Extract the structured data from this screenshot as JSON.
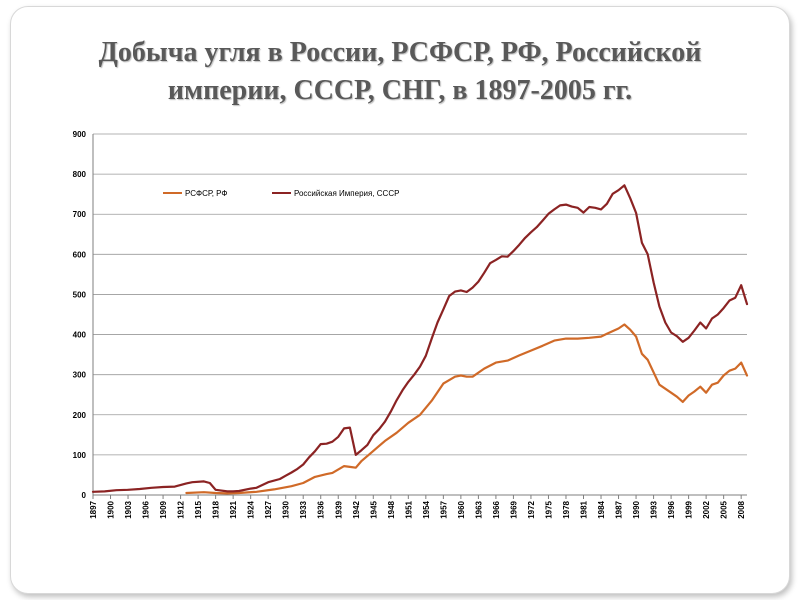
{
  "title": {
    "line1": "Добыча угля в России, РСФСР, РФ, Российской",
    "line2": "империи, СССР, СНГ, в  1897-2005 гг."
  },
  "chart_data": {
    "type": "line",
    "ylim": [
      0,
      900
    ],
    "yticks": [
      0,
      100,
      200,
      300,
      400,
      500,
      600,
      700,
      800,
      900
    ],
    "xlim": [
      1897,
      2009
    ],
    "xticks": [
      1897,
      1900,
      1903,
      1906,
      1909,
      1912,
      1915,
      1918,
      1921,
      1924,
      1927,
      1930,
      1933,
      1936,
      1939,
      1942,
      1945,
      1948,
      1951,
      1954,
      1957,
      1960,
      1963,
      1966,
      1969,
      1972,
      1975,
      1978,
      1981,
      1984,
      1987,
      1990,
      1993,
      1996,
      1999,
      2002,
      2005,
      2008
    ],
    "grid": true,
    "legend_position": "top-left",
    "series": [
      {
        "name": "РСФСР, РФ",
        "color": "#d06a28",
        "points": [
          [
            1913,
            5
          ],
          [
            1916,
            7
          ],
          [
            1918,
            5
          ],
          [
            1920,
            4
          ],
          [
            1922,
            5
          ],
          [
            1925,
            8
          ],
          [
            1928,
            14
          ],
          [
            1931,
            22
          ],
          [
            1933,
            30
          ],
          [
            1935,
            45
          ],
          [
            1937,
            52
          ],
          [
            1938,
            55
          ],
          [
            1940,
            72
          ],
          [
            1941,
            70
          ],
          [
            1942,
            68
          ],
          [
            1943,
            85
          ],
          [
            1945,
            110
          ],
          [
            1947,
            135
          ],
          [
            1949,
            155
          ],
          [
            1951,
            180
          ],
          [
            1953,
            200
          ],
          [
            1955,
            235
          ],
          [
            1957,
            278
          ],
          [
            1959,
            295
          ],
          [
            1960,
            298
          ],
          [
            1961,
            295
          ],
          [
            1962,
            295
          ],
          [
            1964,
            315
          ],
          [
            1966,
            330
          ],
          [
            1968,
            335
          ],
          [
            1970,
            348
          ],
          [
            1972,
            360
          ],
          [
            1974,
            372
          ],
          [
            1976,
            385
          ],
          [
            1978,
            390
          ],
          [
            1980,
            390
          ],
          [
            1982,
            392
          ],
          [
            1984,
            395
          ],
          [
            1985,
            402
          ],
          [
            1987,
            415
          ],
          [
            1988,
            425
          ],
          [
            1989,
            412
          ],
          [
            1990,
            395
          ],
          [
            1991,
            352
          ],
          [
            1992,
            337
          ],
          [
            1994,
            275
          ],
          [
            1996,
            255
          ],
          [
            1997,
            245
          ],
          [
            1998,
            232
          ],
          [
            1999,
            248
          ],
          [
            2000,
            258
          ],
          [
            2001,
            270
          ],
          [
            2002,
            255
          ],
          [
            2003,
            275
          ],
          [
            2004,
            280
          ],
          [
            2005,
            298
          ],
          [
            2006,
            310
          ],
          [
            2007,
            315
          ],
          [
            2008,
            330
          ],
          [
            2009,
            298
          ]
        ]
      },
      {
        "name": "Российская Империя, СССР",
        "color": "#8b2323",
        "points": [
          [
            1897,
            8
          ],
          [
            1899,
            9
          ],
          [
            1901,
            12
          ],
          [
            1903,
            13
          ],
          [
            1905,
            15
          ],
          [
            1907,
            18
          ],
          [
            1909,
            20
          ],
          [
            1911,
            21
          ],
          [
            1913,
            29
          ],
          [
            1914,
            32
          ],
          [
            1916,
            34
          ],
          [
            1917,
            30
          ],
          [
            1918,
            13
          ],
          [
            1920,
            9
          ],
          [
            1921,
            9
          ],
          [
            1922,
            10
          ],
          [
            1924,
            16
          ],
          [
            1925,
            18
          ],
          [
            1927,
            32
          ],
          [
            1929,
            40
          ],
          [
            1930,
            48
          ],
          [
            1931,
            56
          ],
          [
            1932,
            65
          ],
          [
            1933,
            76
          ],
          [
            1934,
            94
          ],
          [
            1935,
            109
          ],
          [
            1936,
            127
          ],
          [
            1937,
            128
          ],
          [
            1938,
            133
          ],
          [
            1939,
            145
          ],
          [
            1940,
            166
          ],
          [
            1941,
            168
          ],
          [
            1942,
            100
          ],
          [
            1943,
            112
          ],
          [
            1944,
            125
          ],
          [
            1945,
            149
          ],
          [
            1946,
            164
          ],
          [
            1947,
            183
          ],
          [
            1948,
            208
          ],
          [
            1949,
            236
          ],
          [
            1950,
            261
          ],
          [
            1951,
            282
          ],
          [
            1952,
            300
          ],
          [
            1953,
            320
          ],
          [
            1954,
            347
          ],
          [
            1955,
            390
          ],
          [
            1956,
            430
          ],
          [
            1957,
            463
          ],
          [
            1958,
            496
          ],
          [
            1959,
            507
          ],
          [
            1960,
            510
          ],
          [
            1961,
            506
          ],
          [
            1962,
            517
          ],
          [
            1963,
            532
          ],
          [
            1964,
            554
          ],
          [
            1965,
            578
          ],
          [
            1966,
            586
          ],
          [
            1967,
            595
          ],
          [
            1968,
            594
          ],
          [
            1969,
            608
          ],
          [
            1970,
            624
          ],
          [
            1971,
            641
          ],
          [
            1972,
            655
          ],
          [
            1973,
            668
          ],
          [
            1974,
            684
          ],
          [
            1975,
            701
          ],
          [
            1976,
            712
          ],
          [
            1977,
            722
          ],
          [
            1978,
            724
          ],
          [
            1979,
            719
          ],
          [
            1980,
            716
          ],
          [
            1981,
            704
          ],
          [
            1982,
            718
          ],
          [
            1983,
            716
          ],
          [
            1984,
            712
          ],
          [
            1985,
            726
          ],
          [
            1986,
            751
          ],
          [
            1987,
            760
          ],
          [
            1988,
            772
          ],
          [
            1989,
            740
          ],
          [
            1990,
            703
          ],
          [
            1991,
            629
          ],
          [
            1992,
            600
          ],
          [
            1993,
            530
          ],
          [
            1994,
            470
          ],
          [
            1995,
            430
          ],
          [
            1996,
            405
          ],
          [
            1997,
            396
          ],
          [
            1998,
            382
          ],
          [
            1999,
            392
          ],
          [
            2000,
            410
          ],
          [
            2001,
            430
          ],
          [
            2002,
            415
          ],
          [
            2003,
            440
          ],
          [
            2004,
            450
          ],
          [
            2005,
            466
          ],
          [
            2006,
            485
          ],
          [
            2007,
            492
          ],
          [
            2008,
            523
          ],
          [
            2009,
            476
          ]
        ]
      }
    ]
  }
}
